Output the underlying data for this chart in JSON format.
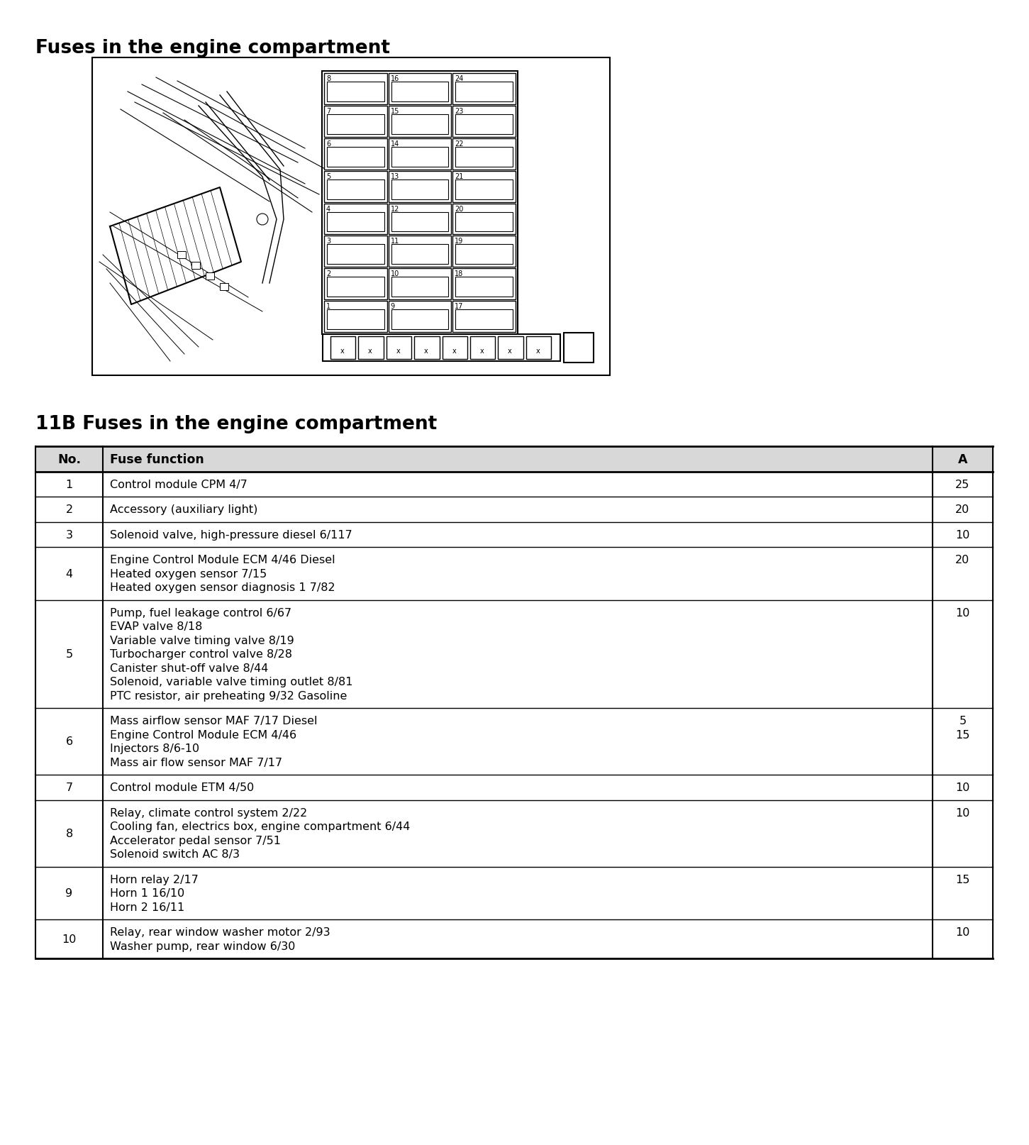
{
  "title1": "Fuses in the engine compartment",
  "title2": "11B Fuses in the engine compartment",
  "bg_color": "#ffffff",
  "table_headers": [
    "No.",
    "Fuse function",
    "A"
  ],
  "rows": [
    {
      "no": "1",
      "func": "Control module CPM 4/7",
      "amp": "25"
    },
    {
      "no": "2",
      "func": "Accessory (auxiliary light)",
      "amp": "20"
    },
    {
      "no": "3",
      "func": "Solenoid valve, high-pressure diesel 6/117",
      "amp": "10"
    },
    {
      "no": "4",
      "func": "Engine Control Module ECM 4/46 Diesel\nHeated oxygen sensor 7/15\nHeated oxygen sensor diagnosis 1 7/82",
      "amp": "20"
    },
    {
      "no": "5",
      "func": "Pump, fuel leakage control 6/67\nEVAP valve 8/18\nVariable valve timing valve 8/19\nTurbocharger control valve 8/28\nCanister shut-off valve 8/44\nSolenoid, variable valve timing outlet 8/81\nPTC resistor, air preheating 9/32 Gasoline",
      "amp": "10"
    },
    {
      "no": "6",
      "func": "Mass airflow sensor MAF 7/17 Diesel\nEngine Control Module ECM 4/46\nInjectors 8/6-10\nMass air flow sensor MAF 7/17",
      "amp": "5\n15"
    },
    {
      "no": "7",
      "func": "Control module ETM 4/50",
      "amp": "10"
    },
    {
      "no": "8",
      "func": "Relay, climate control system 2/22\nCooling fan, electrics box, engine compartment 6/44\nAccelerator pedal sensor 7/51\nSolenoid switch AC 8/3",
      "amp": "10"
    },
    {
      "no": "9",
      "func": "Horn relay 2/17\nHorn 1 16/10\nHorn 2 16/11",
      "amp": "15"
    },
    {
      "no": "10",
      "func": "Relay, rear window washer motor 2/93\nWasher pump, rear window 6/30",
      "amp": "10"
    }
  ],
  "header_bg": "#d8d8d8",
  "font_size_title1": 19,
  "font_size_title2": 19,
  "font_size_table": 11.5,
  "font_size_header": 12.5,
  "fig_width": 14.51,
  "fig_height": 16.15,
  "dpi": 100
}
